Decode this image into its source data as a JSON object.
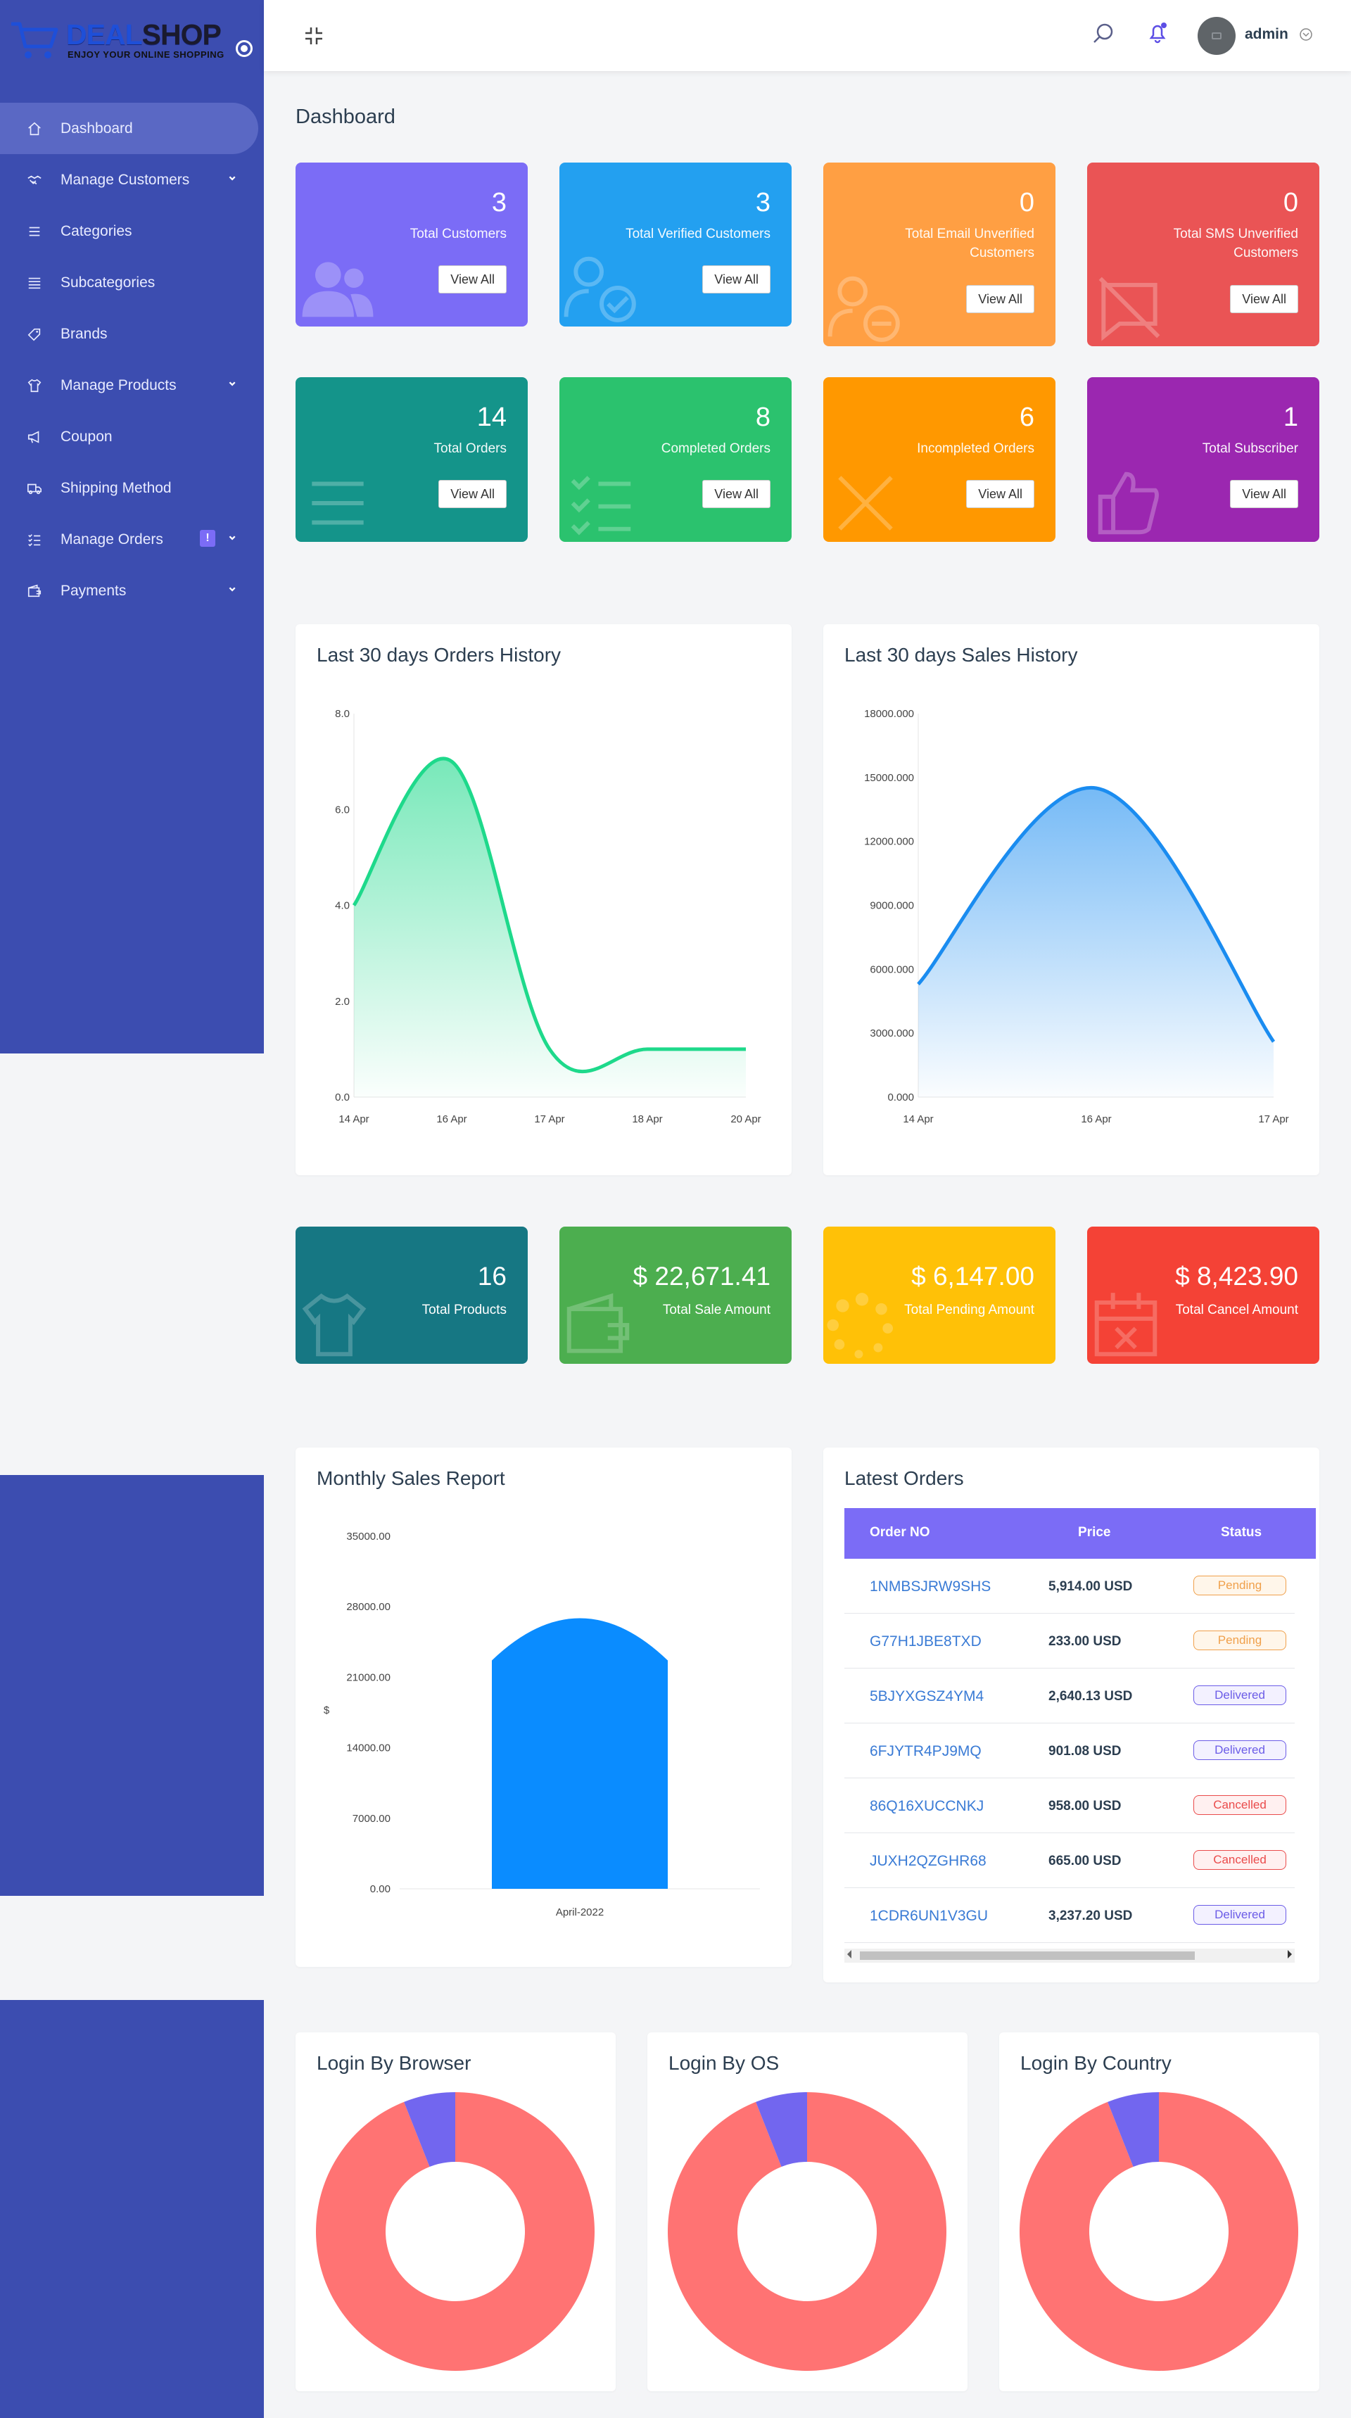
{
  "brand": {
    "name_deal": "DEAL",
    "name_shop": "SHOP",
    "tagline": "ENJOY YOUR ONLINE SHOPPING"
  },
  "sidebar": {
    "items": [
      {
        "label": "Dashboard",
        "icon": "home-icon",
        "active": true
      },
      {
        "label": "Manage Customers",
        "icon": "handshake-icon",
        "has_submenu": true
      },
      {
        "label": "Categories",
        "icon": "list-icon"
      },
      {
        "label": "Subcategories",
        "icon": "stack-icon"
      },
      {
        "label": "Brands",
        "icon": "tag-icon"
      },
      {
        "label": "Manage Products",
        "icon": "shirt-icon",
        "has_submenu": true
      },
      {
        "label": "Coupon",
        "icon": "megaphone-icon"
      },
      {
        "label": "Shipping Method",
        "icon": "truck-icon"
      },
      {
        "label": "Manage Orders",
        "icon": "list-check-icon",
        "has_submenu": true,
        "badge": "!"
      },
      {
        "label": "Payments",
        "icon": "wallet-icon",
        "has_submenu": true
      }
    ]
  },
  "header": {
    "username": "admin",
    "icons": [
      "collapse-icon",
      "search-icon",
      "bell-icon",
      "avatar",
      "chevron-down-icon"
    ]
  },
  "page": {
    "title": "Dashboard"
  },
  "summary_cards": [
    {
      "value": "3",
      "label": "Total Customers",
      "button": "View All",
      "color": "#7b6cf6",
      "icon": "users-icon"
    },
    {
      "value": "3",
      "label": "Total Verified Customers",
      "button": "View All",
      "color": "#23a0f0",
      "icon": "user-check-icon"
    },
    {
      "value": "0",
      "label": "Total Email Unverified Customers",
      "button": "View All",
      "color": "#ff9f43",
      "icon": "user-minus-icon"
    },
    {
      "value": "0",
      "label": "Total SMS Unverified Customers",
      "button": "View All",
      "color": "#ea5455",
      "icon": "message-off-icon"
    },
    {
      "value": "14",
      "label": "Total Orders",
      "button": "View All",
      "color": "#14948a",
      "icon": "list-icon"
    },
    {
      "value": "8",
      "label": "Completed Orders",
      "button": "View All",
      "color": "#2bc26e",
      "icon": "list-check-icon"
    },
    {
      "value": "6",
      "label": "Incompleted Orders",
      "button": "View All",
      "color": "#ff9800",
      "icon": "x-icon"
    },
    {
      "value": "1",
      "label": "Total Subscriber",
      "button": "View All",
      "color": "#9b27b0",
      "icon": "thumbs-up-icon"
    }
  ],
  "stat_cards": [
    {
      "value": "16",
      "label": "Total Products",
      "color": "#167783",
      "icon": "shirt-icon"
    },
    {
      "value": "$ 22,671.41",
      "label": "Total Sale Amount",
      "color": "#4cae4f",
      "icon": "wallet-icon"
    },
    {
      "value": "$ 6,147.00",
      "label": "Total Pending Amount",
      "color": "#ffc107",
      "icon": "loader-icon"
    },
    {
      "value": "$ 8,423.90",
      "label": "Total Cancel Amount",
      "color": "#f44236",
      "icon": "calendar-x-icon"
    }
  ],
  "orders_history": {
    "title": "Last 30 days Orders History"
  },
  "sales_history": {
    "title": "Last 30 days Sales History"
  },
  "monthly_report": {
    "title": "Monthly Sales Report",
    "ylabel": "$"
  },
  "latest_orders": {
    "title": "Latest Orders",
    "columns": [
      "Order NO",
      "Price",
      "Status"
    ],
    "rows": [
      {
        "order_no": "1NMBSJRW9SHS",
        "price": "5,914.00 USD",
        "status": "Pending"
      },
      {
        "order_no": "G77H1JBE8TXD",
        "price": "233.00 USD",
        "status": "Pending"
      },
      {
        "order_no": "5BJYXGSZ4YM4",
        "price": "2,640.13 USD",
        "status": "Delivered"
      },
      {
        "order_no": "6FJYTR4PJ9MQ",
        "price": "901.08 USD",
        "status": "Delivered"
      },
      {
        "order_no": "86Q16XUCCNKJ",
        "price": "958.00 USD",
        "status": "Cancelled"
      },
      {
        "order_no": "JUXH2QZGHR68",
        "price": "665.00 USD",
        "status": "Cancelled"
      },
      {
        "order_no": "1CDR6UN1V3GU",
        "price": "3,237.20 USD",
        "status": "Delivered"
      }
    ]
  },
  "login_charts": [
    {
      "title": "Login By Browser"
    },
    {
      "title": "Login By OS"
    },
    {
      "title": "Login By Country"
    }
  ],
  "chart_data": [
    {
      "type": "area",
      "title": "Last 30 days Orders History",
      "x": [
        "14 Apr",
        "16 Apr",
        "17 Apr",
        "18 Apr",
        "20 Apr"
      ],
      "values": [
        4,
        7,
        1,
        1,
        1
      ],
      "ylim": [
        0,
        8
      ],
      "yticks": [
        "0.0",
        "2.0",
        "4.0",
        "6.0",
        "8.0"
      ],
      "color": "#1ed98b"
    },
    {
      "type": "area",
      "title": "Last 30 days Sales History",
      "x": [
        "14 Apr",
        "16 Apr",
        "17 Apr"
      ],
      "values": [
        5300,
        14500,
        2600
      ],
      "ylim": [
        0,
        18000
      ],
      "yticks": [
        "0.000",
        "3000.000",
        "6000.000",
        "9000.000",
        "12000.000",
        "15000.000",
        "18000.000"
      ],
      "color": "#1a8cf0"
    },
    {
      "type": "bar",
      "title": "Monthly Sales Report",
      "categories": [
        "April-2022"
      ],
      "values": [
        22671.41
      ],
      "ylabel": "$",
      "ylim": [
        0,
        35000
      ],
      "yticks": [
        "0.00",
        "7000.00",
        "14000.00",
        "21000.00",
        "28000.00",
        "35000.00"
      ],
      "color": "#0a8cff"
    },
    {
      "type": "pie",
      "title": "Login By Browser",
      "slices": [
        {
          "value": 94,
          "color": "#ff7373"
        },
        {
          "value": 6,
          "color": "#7266ef"
        }
      ]
    },
    {
      "type": "pie",
      "title": "Login By OS",
      "slices": [
        {
          "value": 94,
          "color": "#ff7373"
        },
        {
          "value": 6,
          "color": "#7266ef"
        }
      ]
    },
    {
      "type": "pie",
      "title": "Login By Country",
      "slices": [
        {
          "value": 94,
          "color": "#ff7373"
        },
        {
          "value": 6,
          "color": "#7266ef"
        }
      ]
    }
  ]
}
